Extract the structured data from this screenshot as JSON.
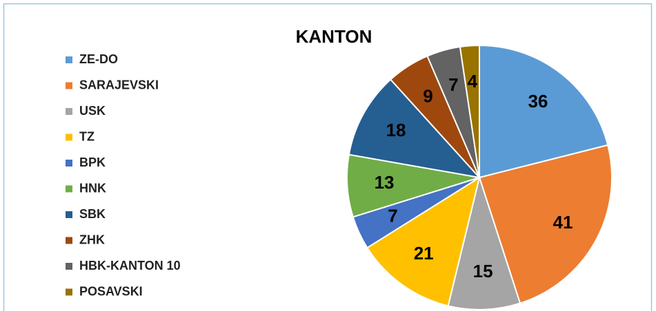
{
  "chart_data": {
    "type": "pie",
    "title": "KANTON",
    "categories": [
      "ZE-DO",
      "SARAJEVSKI",
      "USK",
      "TZ",
      "BPK",
      "HNK",
      "SBK",
      "ZHK",
      "HBK-KANTON 10",
      "POSAVSKI"
    ],
    "values": [
      36,
      41,
      15,
      21,
      7,
      13,
      18,
      9,
      7,
      4
    ],
    "colors": [
      "#5b9bd5",
      "#ed7d31",
      "#a5a5a5",
      "#ffc000",
      "#4472c4",
      "#70ad47",
      "#255e91",
      "#9e480e",
      "#636363",
      "#997300"
    ],
    "legend": "left"
  }
}
